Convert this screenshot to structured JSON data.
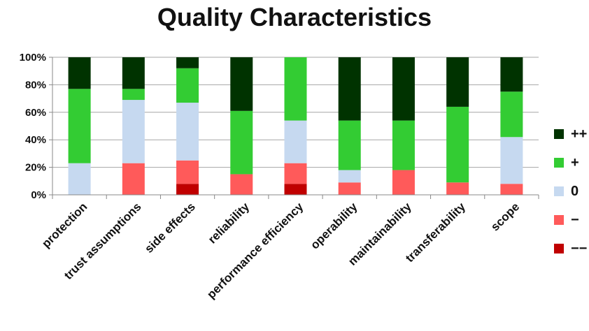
{
  "chart_data": {
    "type": "bar",
    "stacked": true,
    "normalized": true,
    "title": "Quality Characteristics",
    "ylim": [
      0,
      100
    ],
    "yticks": [
      "0%",
      "20%",
      "40%",
      "60%",
      "80%",
      "100%"
    ],
    "grid": true,
    "legend_position": "right",
    "categories": [
      "protection",
      "trust assumptions",
      "side effects",
      "reliability",
      "performance efficiency",
      "operability",
      "maintainability",
      "transferability",
      "scope"
    ],
    "series": [
      {
        "name": "−−",
        "color": "#c00000",
        "values": [
          0,
          0,
          8,
          0,
          8,
          0,
          0,
          0,
          0
        ]
      },
      {
        "name": "−",
        "color": "#ff5a5a",
        "values": [
          0,
          23,
          17,
          15,
          15,
          9,
          18,
          9,
          8
        ]
      },
      {
        "name": "0",
        "color": "#c6d9f0",
        "values": [
          23,
          46,
          42,
          0,
          31,
          9,
          0,
          0,
          34
        ]
      },
      {
        "name": "+",
        "color": "#33cc33",
        "values": [
          54,
          8,
          25,
          46,
          46,
          36,
          36,
          55,
          33
        ]
      },
      {
        "name": "++",
        "color": "#003300",
        "values": [
          23,
          23,
          8,
          39,
          0,
          46,
          46,
          36,
          25
        ]
      }
    ],
    "legend_order": [
      "++",
      "+",
      "0",
      "−",
      "−−"
    ]
  }
}
